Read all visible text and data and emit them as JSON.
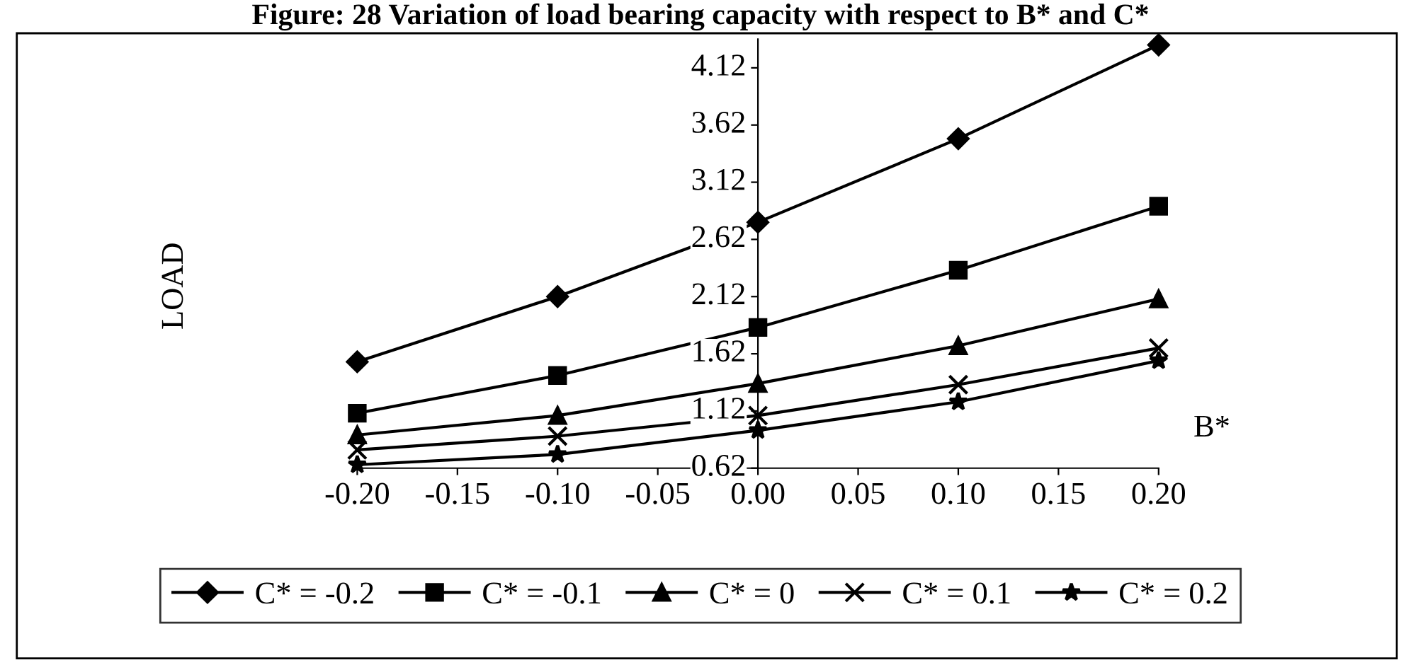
{
  "chart_data": {
    "type": "line",
    "title": "Figure: 28 Variation of load bearing capacity with respect to B* and C*",
    "xlabel": "B*",
    "ylabel": "LOAD",
    "x": [
      -0.2,
      -0.1,
      0.0,
      0.1,
      0.2
    ],
    "xlim": [
      -0.2,
      0.2
    ],
    "xticks": [
      {
        "value": -0.2,
        "label": "-0.20"
      },
      {
        "value": -0.15,
        "label": "-0.15"
      },
      {
        "value": -0.1,
        "label": "-0.10"
      },
      {
        "value": -0.05,
        "label": "-0.05"
      },
      {
        "value": 0,
        "label": "0.00"
      },
      {
        "value": 0.05,
        "label": "0.05"
      },
      {
        "value": 0.1,
        "label": "0.10"
      },
      {
        "value": 0.15,
        "label": "0.15"
      },
      {
        "value": 0.2,
        "label": "0.20"
      }
    ],
    "ylim": [
      0.62,
      4.37
    ],
    "yticks": [
      0.62,
      1.12,
      1.62,
      2.12,
      2.62,
      3.12,
      3.62,
      4.12
    ],
    "grid": false,
    "legend": "bottom",
    "line_style": "solid",
    "series": [
      {
        "name": "C* = -0.2",
        "color": "#000000",
        "marker": "diamond",
        "values": [
          1.55,
          2.12,
          2.77,
          3.5,
          4.32
        ]
      },
      {
        "name": "C* = -0.1",
        "color": "#000000",
        "marker": "square",
        "values": [
          1.1,
          1.43,
          1.85,
          2.35,
          2.91
        ]
      },
      {
        "name": "C* = 0",
        "color": "#000000",
        "marker": "triangle",
        "values": [
          0.91,
          1.08,
          1.36,
          1.69,
          2.1
        ]
      },
      {
        "name": "C* = 0.1",
        "color": "#000000",
        "marker": "cross",
        "values": [
          0.78,
          0.9,
          1.08,
          1.35,
          1.67
        ]
      },
      {
        "name": "C* = 0.2",
        "color": "#000000",
        "marker": "star",
        "values": [
          0.65,
          0.74,
          0.95,
          1.2,
          1.56
        ]
      }
    ]
  }
}
